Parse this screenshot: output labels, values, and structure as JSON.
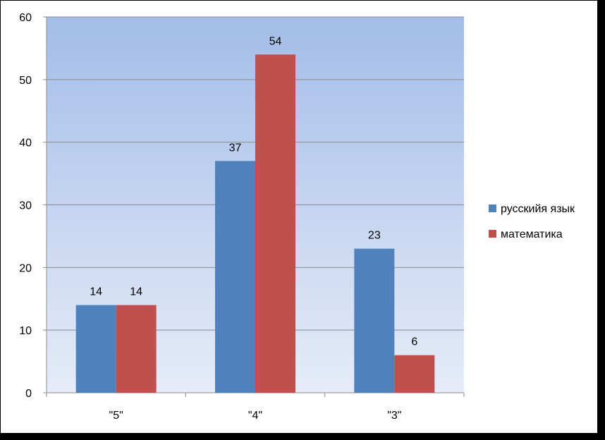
{
  "chart_data": {
    "type": "bar",
    "categories": [
      "\"5\"",
      "\"4\"",
      "\"3\""
    ],
    "series": [
      {
        "name": "русскийя язык",
        "values": [
          14,
          37,
          23
        ],
        "color": "#4f81bd"
      },
      {
        "name": "математика",
        "values": [
          14,
          54,
          6
        ],
        "color": "#c0504d"
      }
    ],
    "title": "",
    "xlabel": "",
    "ylabel": "",
    "ylim": [
      0,
      60
    ],
    "yticks": [
      "0",
      "10",
      "20",
      "30",
      "40",
      "50",
      "60"
    ],
    "grid": true,
    "legend": "right",
    "plot_background": {
      "top": "#a3bde8",
      "bottom": "#e6ecf8"
    }
  }
}
